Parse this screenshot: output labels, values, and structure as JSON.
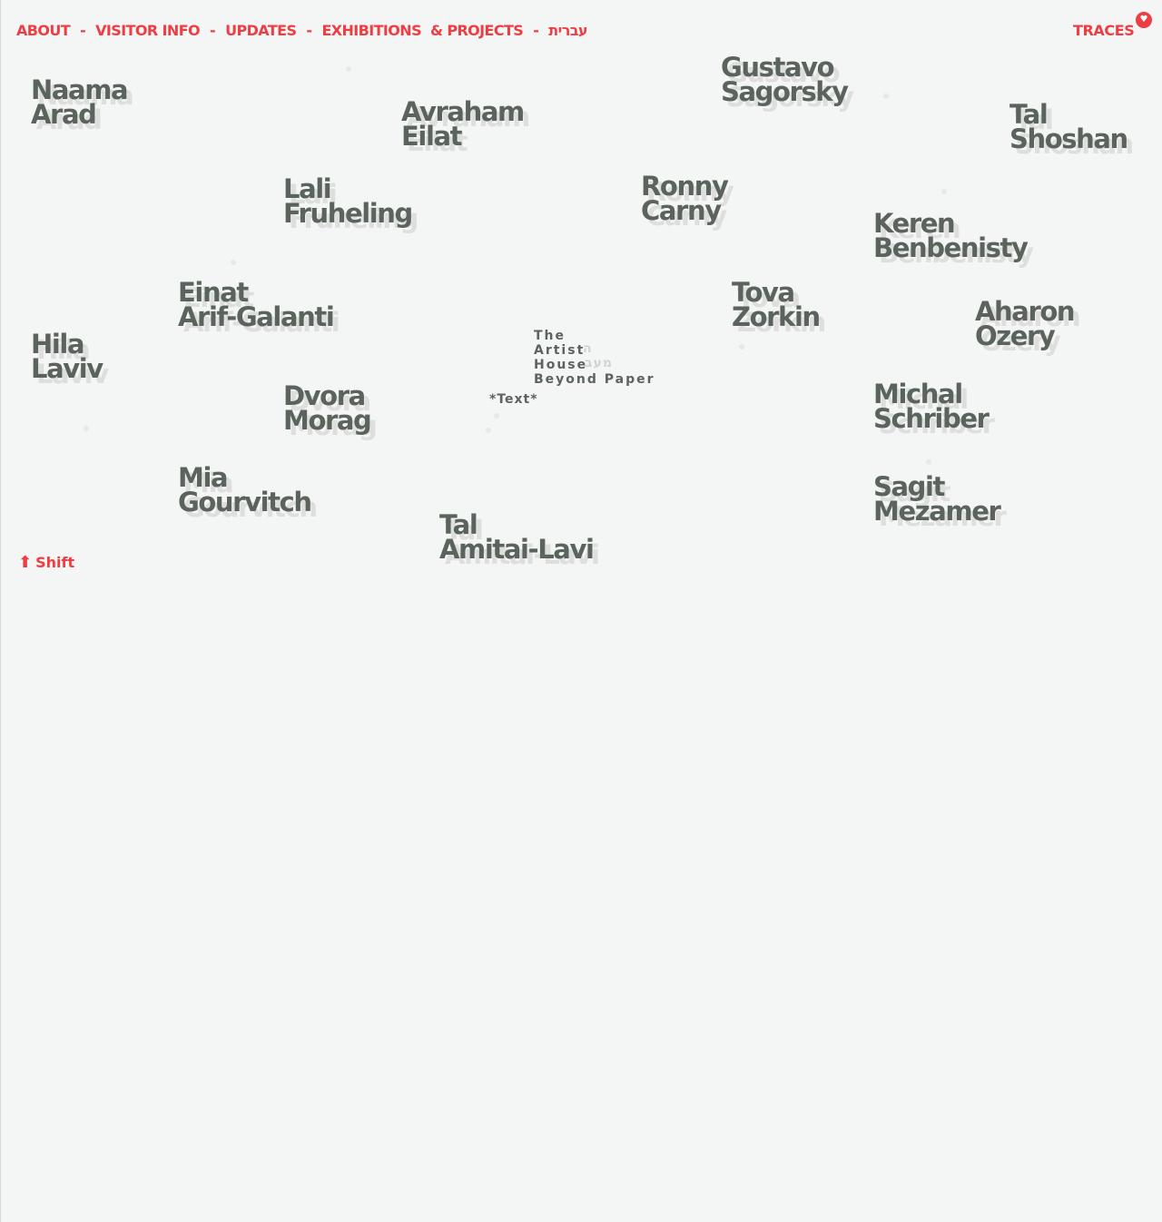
{
  "nav": {
    "about": "ABOUT",
    "visitor_info": "VISITOR INFO",
    "updates": "UPDATES",
    "exhibitions": "EXHIBITIONS",
    "projects": "& PROJECTS",
    "hebrew": "עברית",
    "separator": "-"
  },
  "traces": {
    "label": "TRACES",
    "badge": "♥"
  },
  "center": {
    "line1": "The",
    "line2": "Artist",
    "line3": "House",
    "line4": "Beyond Paper",
    "ghost1": "ה",
    "ghost2": "מעב",
    "text_link": "*Text*"
  },
  "shift": {
    "arrow": "⬆",
    "label": "Shift"
  },
  "artists": [
    {
      "first": "Naama",
      "last": "Arad"
    },
    {
      "first": "Avraham",
      "last": "Eilat"
    },
    {
      "first": "Gustavo",
      "last": "Sagorsky"
    },
    {
      "first": "Tal",
      "last": "Shoshan"
    },
    {
      "first": "Lali",
      "last": "Fruheling"
    },
    {
      "first": "Ronny",
      "last": "Carny"
    },
    {
      "first": "Keren",
      "last": "Benbenisty"
    },
    {
      "first": "Einat",
      "last": "Arif-Galanti"
    },
    {
      "first": "Tova",
      "last": "Zorkin"
    },
    {
      "first": "Aharon",
      "last": "Ozery"
    },
    {
      "first": "Hila",
      "last": "Laviv"
    },
    {
      "first": "Dvora",
      "last": "Morag"
    },
    {
      "first": "Michal",
      "last": "Schriber"
    },
    {
      "first": "Mia",
      "last": "Gourvitch"
    },
    {
      "first": "Sagit",
      "last": "Mezamer"
    },
    {
      "first": "Tal",
      "last": "Amitai-Lavi"
    }
  ]
}
